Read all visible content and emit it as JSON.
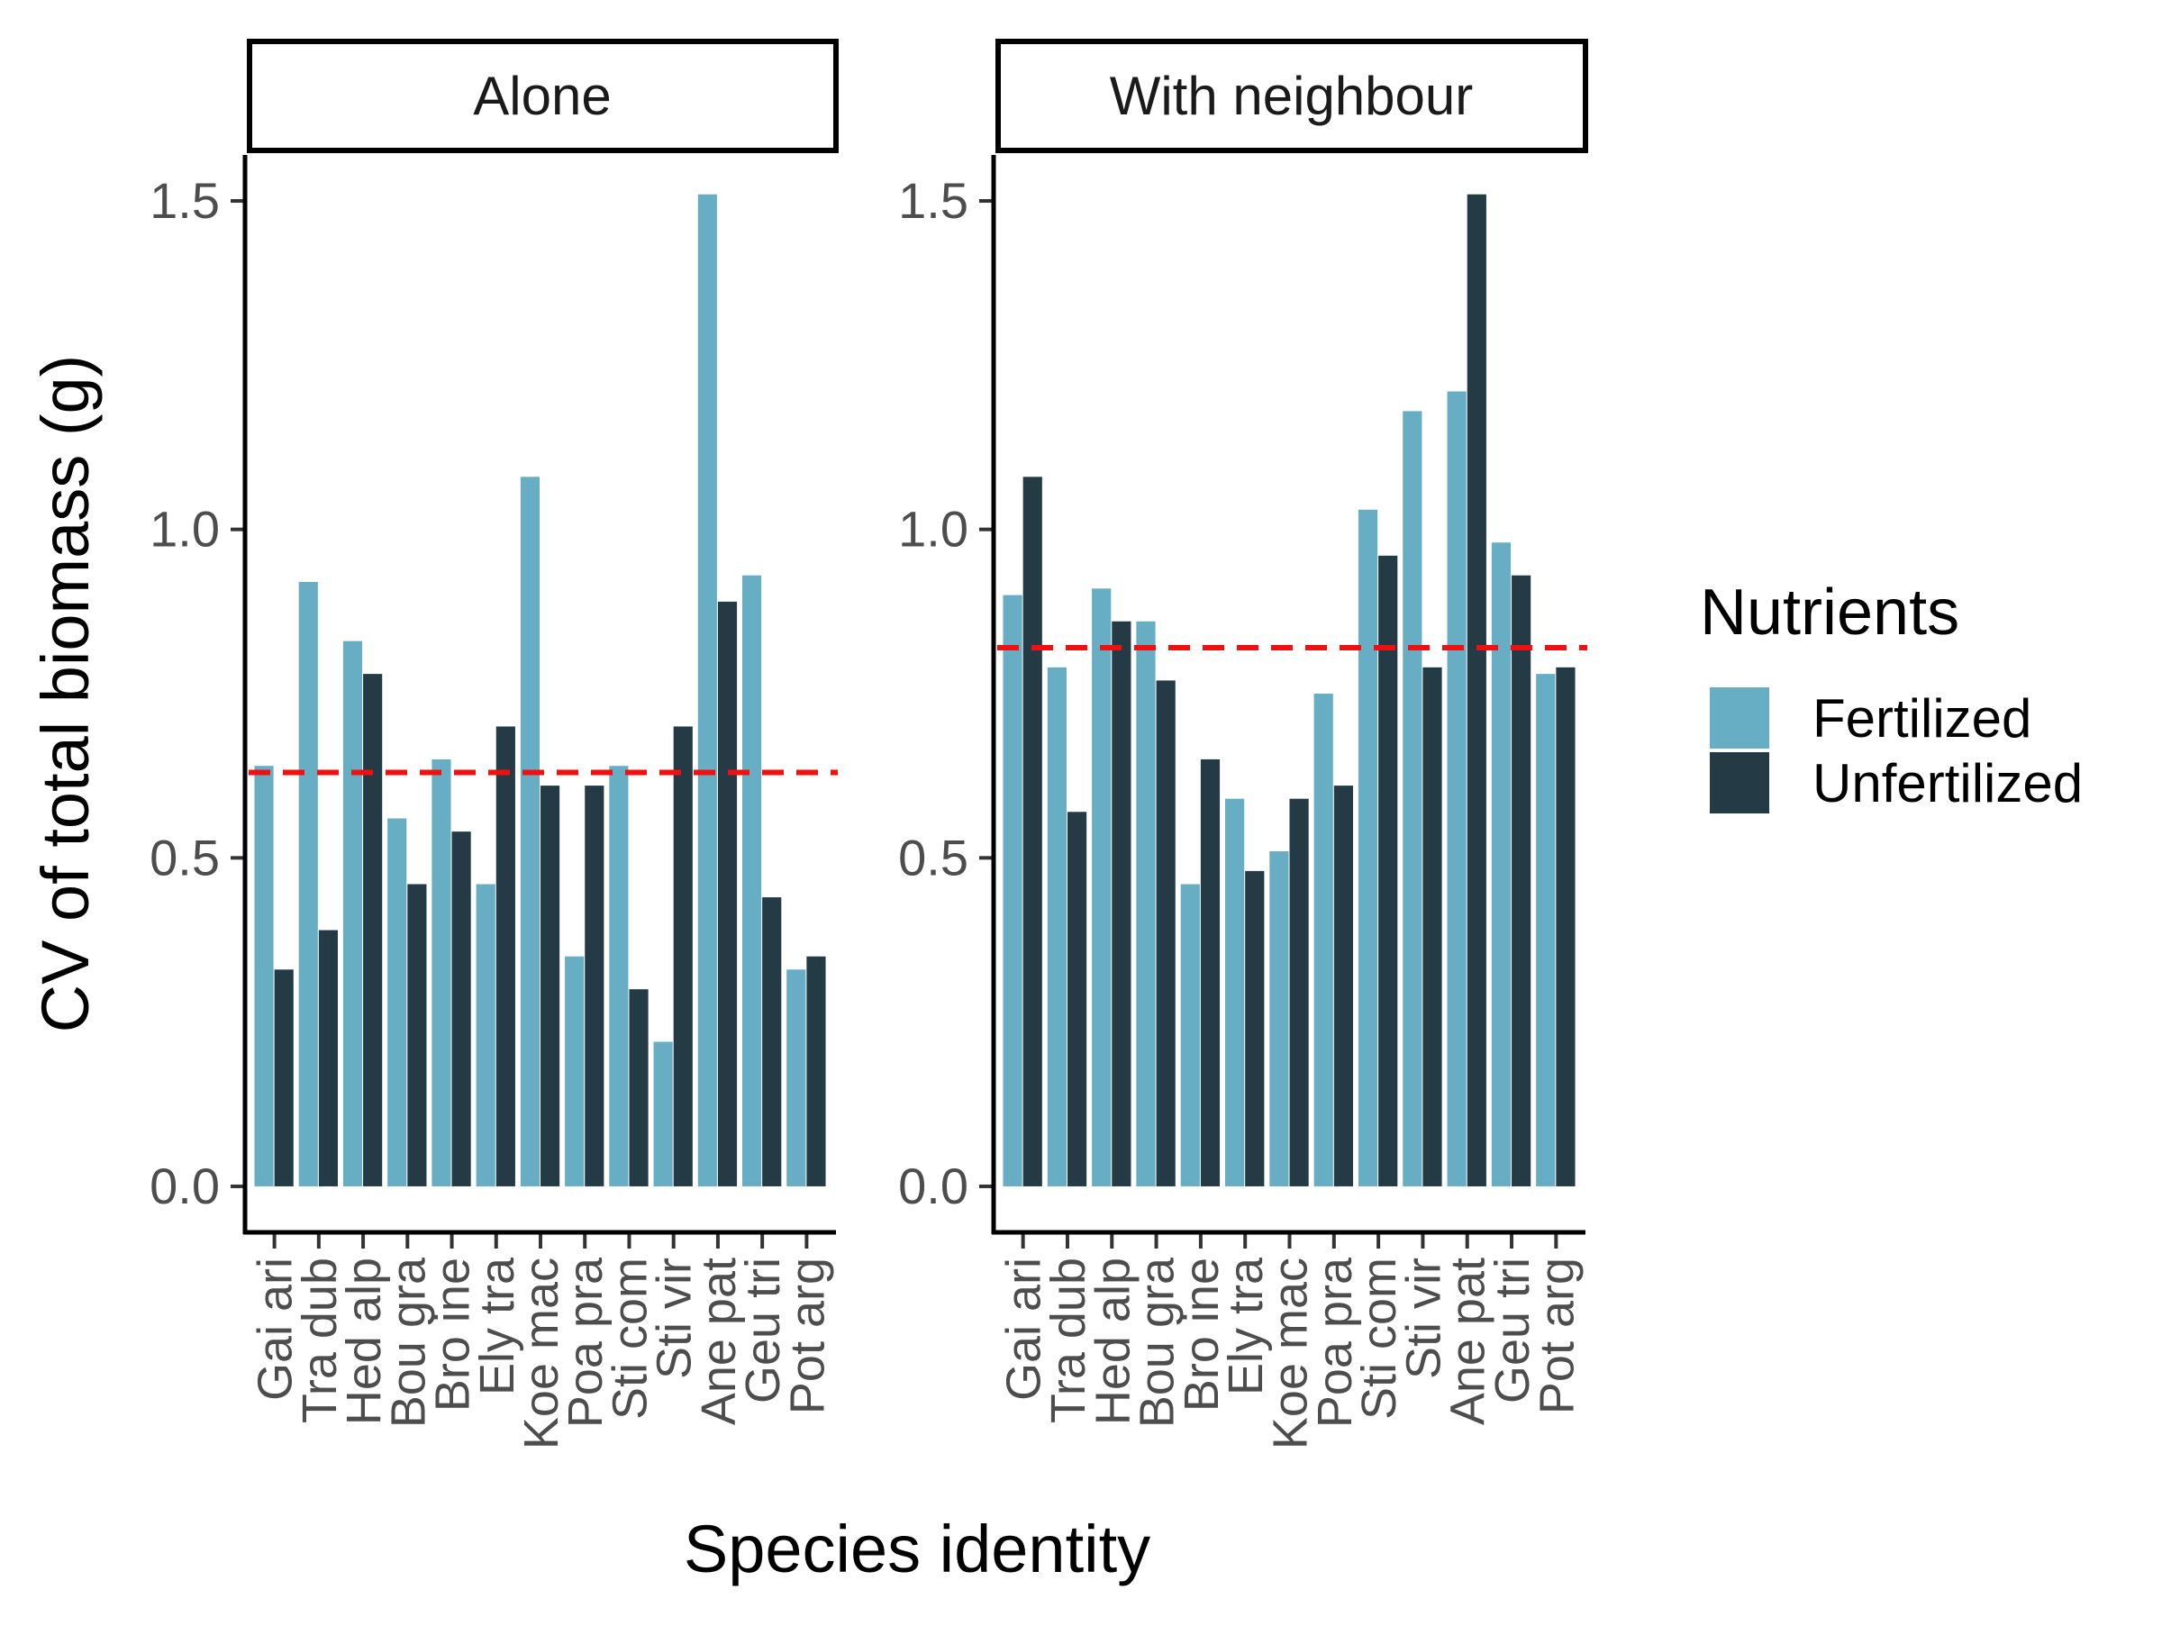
{
  "chart_data": {
    "type": "bar",
    "xlabel": "Species identity",
    "ylabel": "CV of total biomass (g)",
    "ylim": [
      -0.07,
      1.57
    ],
    "yticks": [
      "0.0",
      "0.5",
      "1.0",
      "1.5"
    ],
    "legend": {
      "title": "Nutrients",
      "placement": "right",
      "entries": [
        {
          "name": "Fertilized",
          "color": "#67adc4"
        },
        {
          "name": "Unfertilized",
          "color": "#243a45"
        }
      ]
    },
    "reference_line_color": "#ee1111",
    "panels": [
      {
        "title": "Alone",
        "categories": [
          "Gai ari",
          "Tra dub",
          "Hed alp",
          "Bou gra",
          "Bro ine",
          "Ely tra",
          "Koe mac",
          "Poa pra",
          "Sti com",
          "Sti vir",
          "Ane pat",
          "Geu tri",
          "Pot arg"
        ],
        "series": [
          {
            "name": "Fertilized",
            "values": [
              0.64,
              0.92,
              0.83,
              0.56,
              0.65,
              0.46,
              1.08,
              0.35,
              0.64,
              0.22,
              1.51,
              0.93,
              0.33
            ]
          },
          {
            "name": "Unfertilized",
            "values": [
              0.33,
              0.39,
              0.78,
              0.46,
              0.54,
              0.7,
              0.61,
              0.61,
              0.3,
              0.7,
              0.89,
              0.44,
              0.35
            ]
          }
        ],
        "reference_line": 0.63
      },
      {
        "title": "With neighbour",
        "categories": [
          "Gai ari",
          "Tra dub",
          "Hed alp",
          "Bou gra",
          "Bro ine",
          "Ely tra",
          "Koe mac",
          "Poa pra",
          "Sti com",
          "Sti vir",
          "Ane pat",
          "Geu tri",
          "Pot arg"
        ],
        "series": [
          {
            "name": "Fertilized",
            "values": [
              0.9,
              0.79,
              0.91,
              0.86,
              0.46,
              0.59,
              0.51,
              0.75,
              1.03,
              1.18,
              1.21,
              0.98,
              0.78
            ]
          },
          {
            "name": "Unfertilized",
            "values": [
              1.08,
              0.57,
              0.86,
              0.77,
              0.65,
              0.48,
              0.59,
              0.61,
              0.96,
              0.79,
              1.51,
              0.93,
              0.79
            ]
          }
        ],
        "reference_line": 0.82
      }
    ]
  }
}
